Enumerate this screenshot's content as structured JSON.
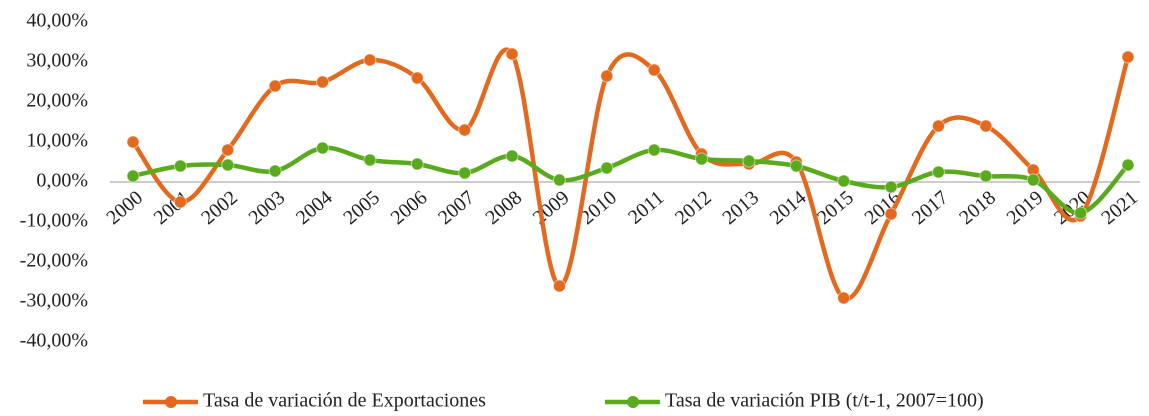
{
  "chart_data": {
    "type": "line",
    "categories": [
      "2000",
      "2001",
      "2002",
      "2003",
      "2004",
      "2005",
      "2006",
      "2007",
      "2008",
      "2009",
      "2010",
      "2011",
      "2012",
      "2013",
      "2014",
      "2015",
      "2016",
      "2017",
      "2018",
      "2019",
      "2020",
      "2021"
    ],
    "series": [
      {
        "name": "Tasa de variación de Exportaciones",
        "color": "#e2691e",
        "values": [
          10,
          -5,
          8,
          24,
          25,
          30.5,
          26,
          13,
          32,
          -26,
          26.5,
          28,
          7,
          4.5,
          5,
          -29,
          -8,
          14,
          14,
          3,
          -8.5,
          31.25
        ]
      },
      {
        "name": "Tasa de variación PIB (t/t-1, 2007=100)",
        "color": "#5aaa1e",
        "values": [
          1.5,
          4,
          4.25,
          2.75,
          8.5,
          5.5,
          4.5,
          2.25,
          6.5,
          0.5,
          3.5,
          8,
          5.75,
          5.25,
          4,
          0.25,
          -1.25,
          2.5,
          1.5,
          0.5,
          -7.75,
          4.25
        ]
      }
    ],
    "ylim": [
      -40,
      40
    ],
    "yticks": [
      {
        "value": 40,
        "label": "40,00%"
      },
      {
        "value": 30,
        "label": "30,00%"
      },
      {
        "value": 20,
        "label": "20,00%"
      },
      {
        "value": 10,
        "label": "10,00%"
      },
      {
        "value": 0,
        "label": "0,00%"
      },
      {
        "value": -10,
        "label": "-10,00%"
      },
      {
        "value": -20,
        "label": "-20,00%"
      },
      {
        "value": -30,
        "label": "-30,00%"
      },
      {
        "value": -40,
        "label": "-40,00%"
      }
    ],
    "grid": false,
    "smooth": true,
    "legend": "bottom"
  }
}
